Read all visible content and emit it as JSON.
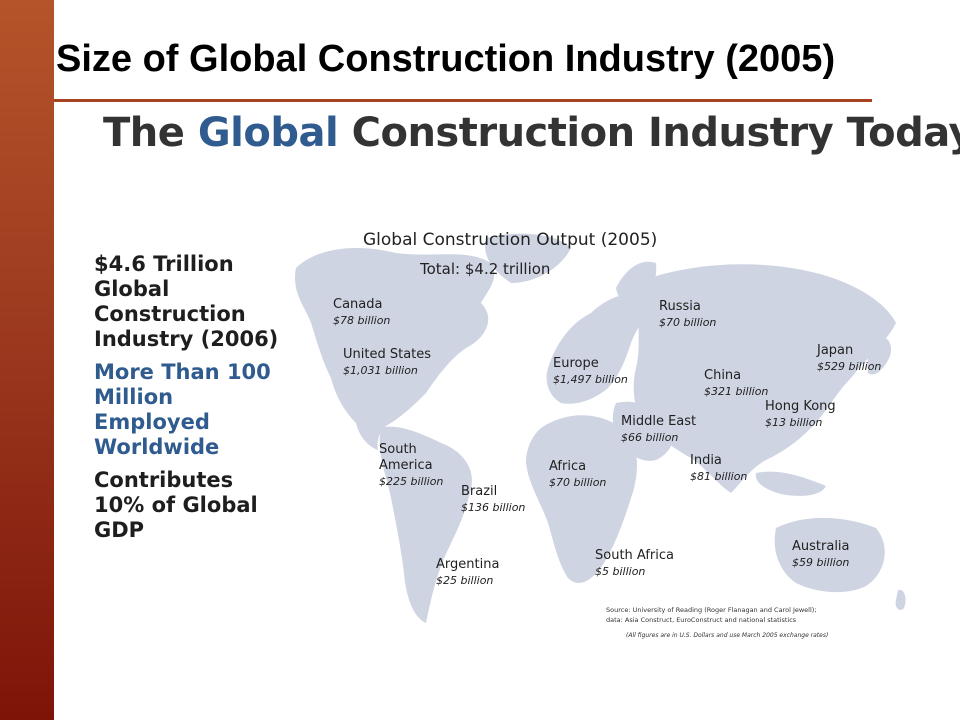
{
  "slide": {
    "title": "Size of Global Construction Industry (2005)",
    "accent_color": "#a5421f"
  },
  "headline": {
    "part1": "The ",
    "part2": "Global",
    "part3": " Construction Industry Today"
  },
  "stats": [
    "$4.6 Trillion\nGlobal\nConstruction\nIndustry (2006)",
    "More Than 100\nMillion\nEmployed\nWorldwide",
    "Contributes\n10% of Global\nGDP"
  ],
  "map": {
    "title": "Global Construction Output (2005)",
    "total": "Total:  $4.2 trillion",
    "regions": [
      {
        "name": "Canada",
        "value": "$78 billion"
      },
      {
        "name": "United States",
        "value": "$1,031 billion"
      },
      {
        "name": "South\nAmerica",
        "value": "$225 billion"
      },
      {
        "name": "Brazil",
        "value": "$136 billion"
      },
      {
        "name": "Argentina",
        "value": "$25 billion"
      },
      {
        "name": "Europe",
        "value": "$1,497 billion"
      },
      {
        "name": "Russia",
        "value": "$70 billion"
      },
      {
        "name": "Middle East",
        "value": "$66 billion"
      },
      {
        "name": "Africa",
        "value": "$70 billion"
      },
      {
        "name": "South Africa",
        "value": "$5 billion"
      },
      {
        "name": "China",
        "value": "$321 billion"
      },
      {
        "name": "India",
        "value": "$81 billion"
      },
      {
        "name": "Hong Kong",
        "value": "$13 billion"
      },
      {
        "name": "Japan",
        "value": "$529 billion"
      },
      {
        "name": "Australia",
        "value": "$59 billion"
      }
    ],
    "source": "Source:  University of Reading (Roger Flanagan and Carol Jewell);\ndata: Asia Construct, EuroConstruct and national statistics",
    "note": "(All figures are in U.S. Dollars and use March 2005 exchange rates)"
  }
}
